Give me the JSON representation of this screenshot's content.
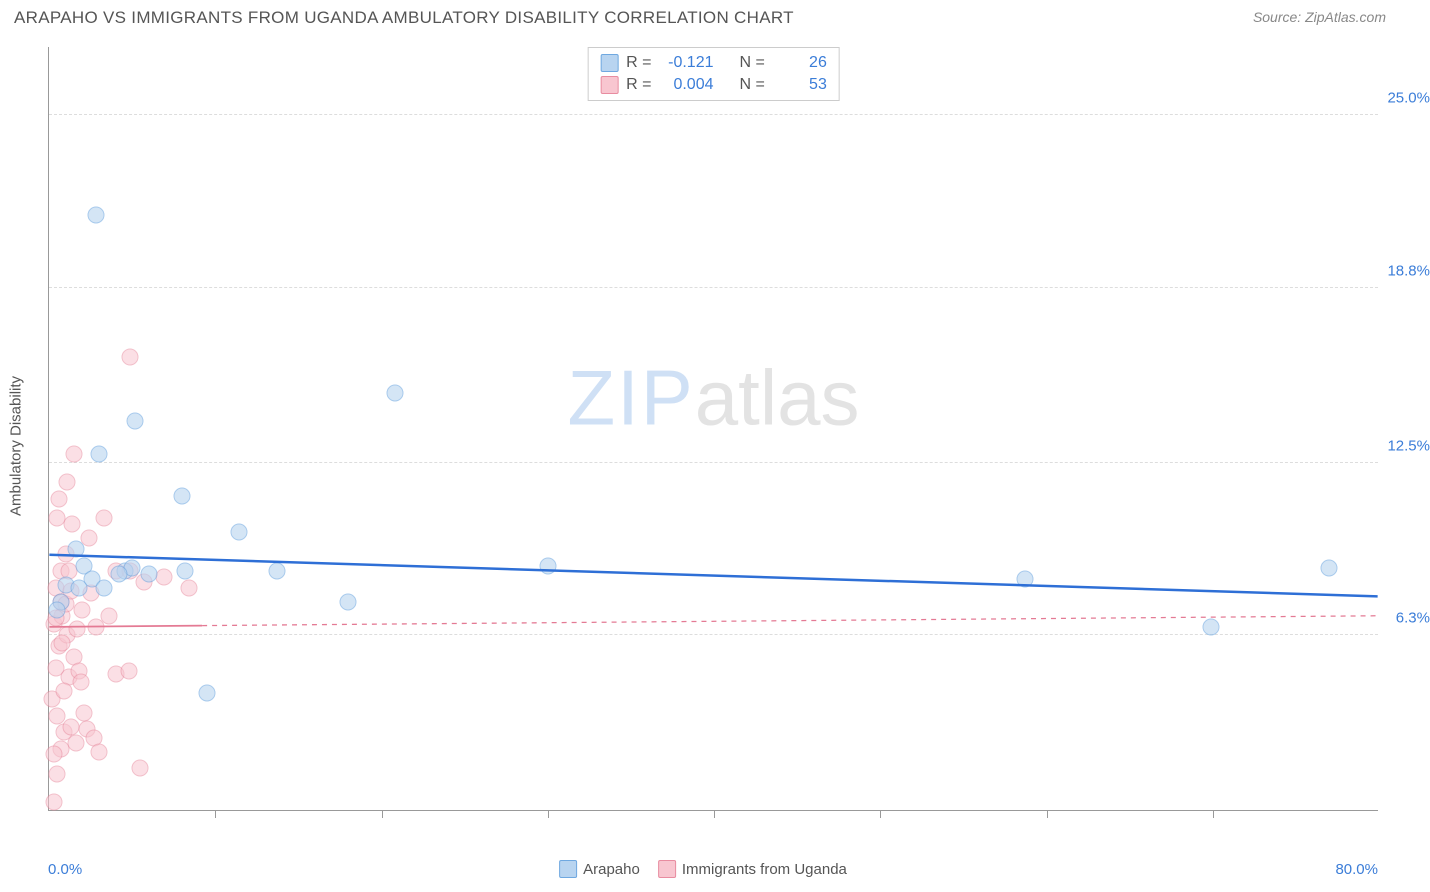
{
  "header": {
    "title": "ARAPAHO VS IMMIGRANTS FROM UGANDA AMBULATORY DISABILITY CORRELATION CHART",
    "source_label": "Source: ",
    "source_value": "ZipAtlas.com"
  },
  "chart": {
    "type": "scatter",
    "ylabel": "Ambulatory Disability",
    "xlim": [
      0.0,
      80.0
    ],
    "ylim": [
      0.0,
      27.5
    ],
    "xmin_label": "0.0%",
    "xmax_label": "80.0%",
    "yticks": [
      6.3,
      12.5,
      18.8,
      25.0
    ],
    "ytick_labels": [
      "6.3%",
      "12.5%",
      "18.8%",
      "25.0%"
    ],
    "xticks_minor": [
      10,
      20,
      30,
      40,
      50,
      60,
      70
    ],
    "background_color": "#ffffff",
    "grid_color": "#dddddd",
    "marker_radius": 8.5,
    "marker_border_width": 1.5,
    "series": [
      {
        "name": "Arapaho",
        "fill": "#b8d4f0",
        "stroke": "#6fa8e0",
        "fill_opacity": 0.6,
        "R": "-0.121",
        "N": "26",
        "trend": {
          "y_at_xmin": 9.2,
          "y_at_xmax": 7.7,
          "color": "#2e6fd6",
          "width": 2.5,
          "dash": null,
          "solid_extent_x": 80.0
        },
        "points": [
          [
            2.8,
            21.4
          ],
          [
            3.0,
            12.8
          ],
          [
            4.6,
            8.6
          ],
          [
            5.2,
            14.0
          ],
          [
            8.0,
            11.3
          ],
          [
            8.2,
            8.6
          ],
          [
            1.6,
            9.4
          ],
          [
            2.1,
            8.8
          ],
          [
            1.0,
            8.1
          ],
          [
            0.7,
            7.5
          ],
          [
            11.4,
            10.0
          ],
          [
            13.7,
            8.6
          ],
          [
            6.0,
            8.5
          ],
          [
            5.0,
            8.7
          ],
          [
            9.5,
            4.2
          ],
          [
            18.0,
            7.5
          ],
          [
            20.8,
            15.0
          ],
          [
            30.0,
            8.8
          ],
          [
            58.7,
            8.3
          ],
          [
            69.9,
            6.6
          ],
          [
            77.0,
            8.7
          ],
          [
            4.2,
            8.5
          ],
          [
            2.6,
            8.3
          ],
          [
            1.8,
            8.0
          ],
          [
            0.5,
            7.2
          ],
          [
            3.3,
            8.0
          ]
        ]
      },
      {
        "name": "Immigrants from Uganda",
        "fill": "#f8c6d0",
        "stroke": "#e88ca0",
        "fill_opacity": 0.55,
        "R": "0.004",
        "N": "53",
        "trend": {
          "y_at_xmin": 6.6,
          "y_at_xmax": 7.0,
          "color": "#e47a94",
          "width": 1.8,
          "dash": "5,5",
          "solid_extent_x": 9.2
        },
        "points": [
          [
            0.3,
            0.3
          ],
          [
            0.5,
            1.3
          ],
          [
            0.7,
            2.2
          ],
          [
            0.9,
            2.8
          ],
          [
            1.2,
            4.8
          ],
          [
            0.4,
            5.1
          ],
          [
            0.6,
            5.9
          ],
          [
            1.1,
            6.3
          ],
          [
            0.3,
            6.7
          ],
          [
            0.8,
            7.0
          ],
          [
            1.5,
            5.5
          ],
          [
            1.8,
            5.0
          ],
          [
            2.1,
            3.5
          ],
          [
            2.3,
            2.9
          ],
          [
            2.7,
            2.6
          ],
          [
            3.0,
            2.1
          ],
          [
            4.0,
            4.9
          ],
          [
            4.8,
            5.0
          ],
          [
            5.5,
            1.5
          ],
          [
            2.8,
            6.6
          ],
          [
            0.4,
            8.0
          ],
          [
            0.7,
            8.6
          ],
          [
            1.0,
            9.2
          ],
          [
            1.4,
            10.3
          ],
          [
            0.6,
            11.2
          ],
          [
            1.1,
            11.8
          ],
          [
            1.5,
            12.8
          ],
          [
            0.5,
            10.5
          ],
          [
            2.4,
            9.8
          ],
          [
            3.3,
            10.5
          ],
          [
            4.0,
            8.6
          ],
          [
            4.9,
            8.6
          ],
          [
            5.7,
            8.2
          ],
          [
            6.9,
            8.4
          ],
          [
            8.4,
            8.0
          ],
          [
            4.9,
            16.3
          ],
          [
            0.7,
            7.5
          ],
          [
            0.4,
            6.9
          ],
          [
            1.0,
            7.4
          ],
          [
            1.3,
            7.9
          ],
          [
            1.7,
            6.5
          ],
          [
            2.0,
            7.2
          ],
          [
            2.5,
            7.8
          ],
          [
            0.2,
            4.0
          ],
          [
            0.9,
            4.3
          ],
          [
            1.3,
            3.0
          ],
          [
            1.6,
            2.4
          ],
          [
            1.9,
            4.6
          ],
          [
            0.5,
            3.4
          ],
          [
            0.3,
            2.0
          ],
          [
            3.6,
            7.0
          ],
          [
            1.2,
            8.6
          ],
          [
            0.8,
            6.0
          ]
        ]
      }
    ]
  },
  "legends": {
    "top": {
      "R_prefix": "R  =",
      "N_prefix": "N  ="
    },
    "bottom": {
      "item1": "Arapaho",
      "item2": "Immigrants from Uganda"
    }
  },
  "watermark": {
    "zip": "ZIP",
    "atlas": "atlas"
  }
}
